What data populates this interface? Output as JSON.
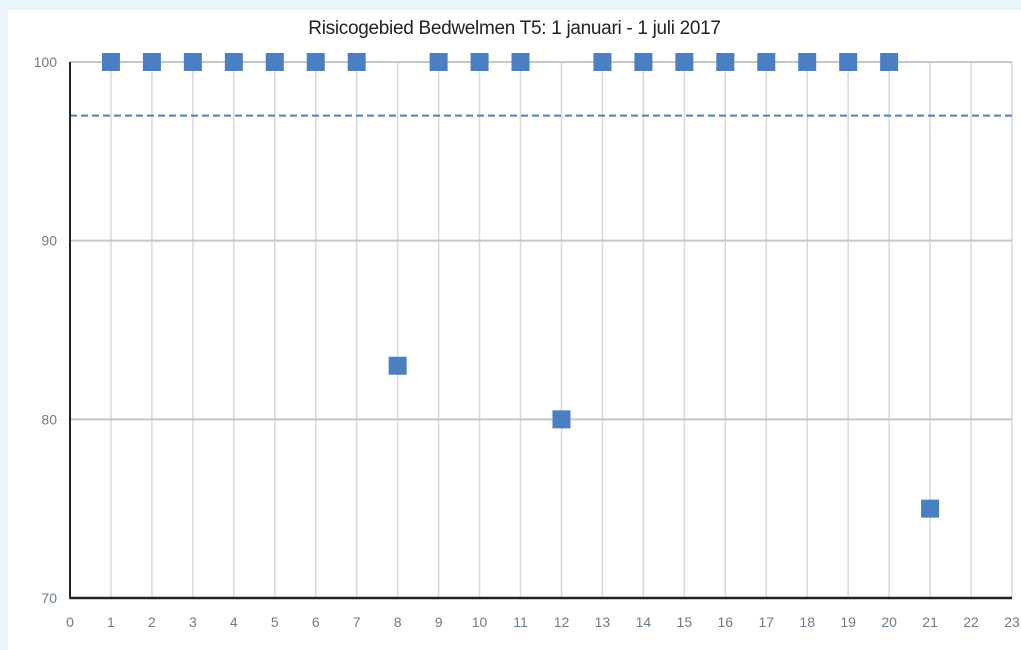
{
  "chart_data": {
    "type": "scatter",
    "title": "Risicogebied Bedwelmen T5: 1 januari - 1 juli 2017",
    "xlabel": "",
    "ylabel": "",
    "xlim": [
      0,
      23
    ],
    "ylim": [
      70,
      100
    ],
    "xticks": [
      0,
      1,
      2,
      3,
      4,
      5,
      6,
      7,
      8,
      9,
      10,
      11,
      12,
      13,
      14,
      15,
      16,
      17,
      18,
      19,
      20,
      21,
      22,
      23
    ],
    "yticks": [
      70,
      80,
      90,
      100
    ],
    "grid": true,
    "legend": "none",
    "series": [
      {
        "marker": "square",
        "color": "#4a7fc1",
        "points": [
          {
            "x": 1,
            "y": 100
          },
          {
            "x": 2,
            "y": 100
          },
          {
            "x": 3,
            "y": 100
          },
          {
            "x": 4,
            "y": 100
          },
          {
            "x": 5,
            "y": 100
          },
          {
            "x": 6,
            "y": 100
          },
          {
            "x": 7,
            "y": 100
          },
          {
            "x": 8,
            "y": 83
          },
          {
            "x": 9,
            "y": 100
          },
          {
            "x": 10,
            "y": 100
          },
          {
            "x": 11,
            "y": 100
          },
          {
            "x": 12,
            "y": 80
          },
          {
            "x": 13,
            "y": 100
          },
          {
            "x": 14,
            "y": 100
          },
          {
            "x": 15,
            "y": 100
          },
          {
            "x": 16,
            "y": 100
          },
          {
            "x": 17,
            "y": 100
          },
          {
            "x": 18,
            "y": 100
          },
          {
            "x": 19,
            "y": 100
          },
          {
            "x": 20,
            "y": 100
          },
          {
            "x": 21,
            "y": 75
          }
        ]
      }
    ],
    "reference_lines": [
      {
        "y": 97,
        "style": "dashed",
        "color": "#4a7fc1"
      }
    ]
  }
}
